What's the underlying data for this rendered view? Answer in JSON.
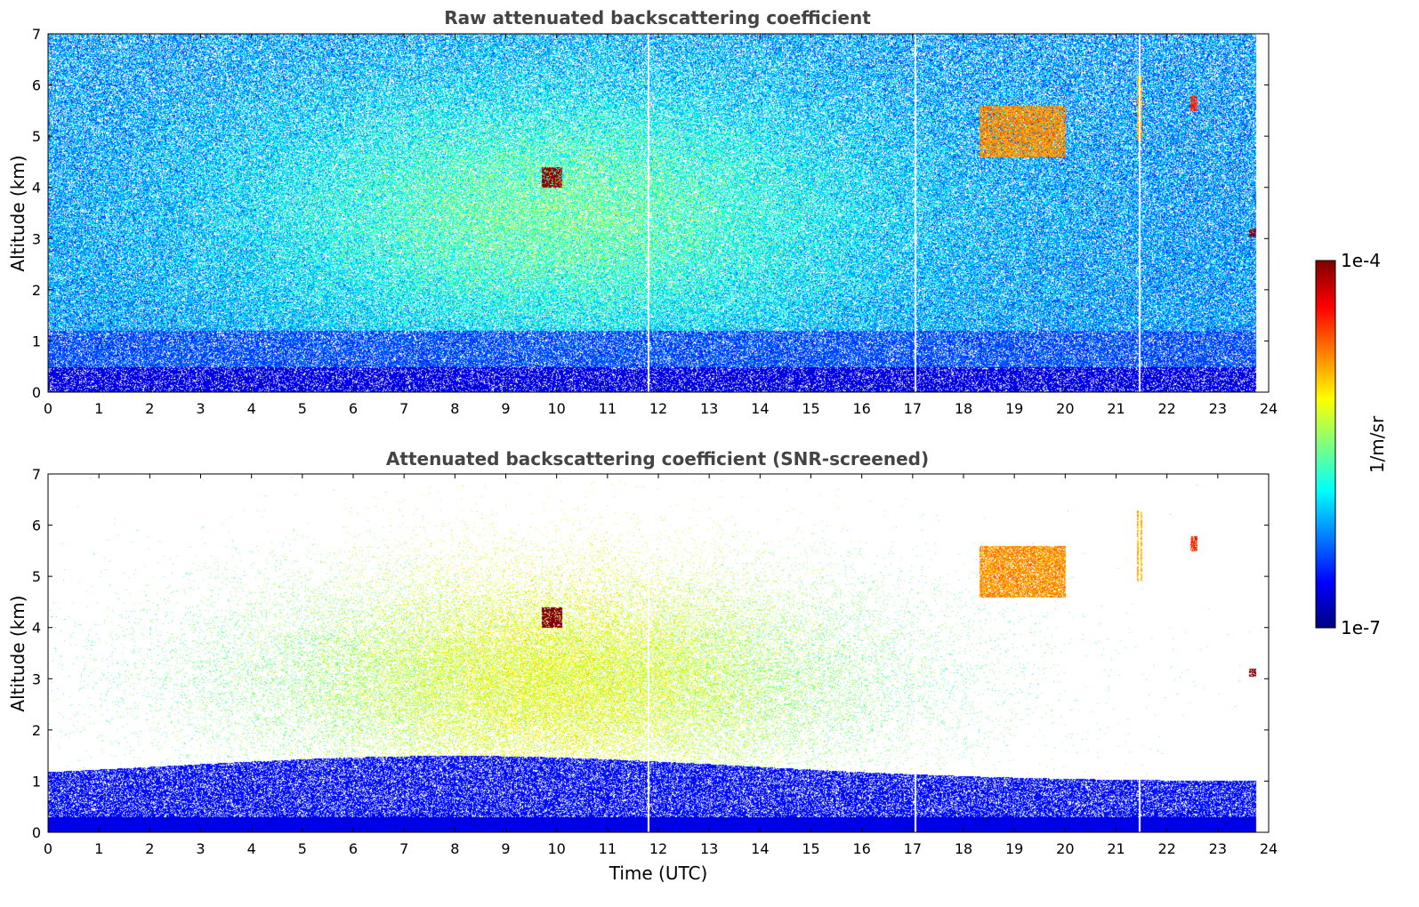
{
  "chart_data": [
    {
      "type": "heatmap",
      "title": "Raw attenuated backscattering coefficient",
      "xlabel": "",
      "ylabel": "Altitude (km)",
      "xlim": [
        0,
        24
      ],
      "ylim": [
        0,
        7
      ],
      "xticks": [
        "0",
        "1",
        "2",
        "3",
        "4",
        "5",
        "6",
        "7",
        "8",
        "9",
        "10",
        "11",
        "12",
        "13",
        "14",
        "15",
        "16",
        "17",
        "18",
        "19",
        "20",
        "21",
        "22",
        "23",
        "24"
      ],
      "yticks": [
        "0",
        "1",
        "2",
        "3",
        "4",
        "5",
        "6",
        "7"
      ],
      "screened": false,
      "features": [
        {
          "kind": "boundary-layer",
          "t_range": [
            0,
            23.75
          ],
          "alt_top": 0.5,
          "log_value": -6.7
        },
        {
          "kind": "aerosol-layer",
          "t_range": [
            6,
            11
          ],
          "alt_range": [
            3.3,
            5.2
          ],
          "log_value": -5.3
        },
        {
          "kind": "cloud",
          "t_range": [
            9.7,
            10.1
          ],
          "alt_range": [
            4.0,
            4.4
          ],
          "log_value": -4.0
        },
        {
          "kind": "cloud",
          "t_range": [
            18.3,
            20.0
          ],
          "alt_range": [
            4.6,
            5.6
          ],
          "log_value": -4.8
        },
        {
          "kind": "cloud",
          "t_range": [
            21.4,
            21.5
          ],
          "alt_range": [
            4.9,
            6.2
          ],
          "log_value": -4.9
        },
        {
          "kind": "cloud",
          "t_range": [
            22.45,
            22.6
          ],
          "alt_range": [
            5.5,
            5.8
          ],
          "log_value": -4.5
        },
        {
          "kind": "cloud",
          "t_range": [
            23.6,
            23.75
          ],
          "alt_range": [
            3.05,
            3.2
          ],
          "log_value": -4.0
        }
      ],
      "gaps_utc": [
        11.8,
        17.05,
        21.45
      ]
    },
    {
      "type": "heatmap",
      "title": "Attenuated backscattering coefficient (SNR-screened)",
      "xlabel": "Time (UTC)",
      "ylabel": "Altitude (km)",
      "xlim": [
        0,
        24
      ],
      "ylim": [
        0,
        7
      ],
      "xticks": [
        "0",
        "1",
        "2",
        "3",
        "4",
        "5",
        "6",
        "7",
        "8",
        "9",
        "10",
        "11",
        "12",
        "13",
        "14",
        "15",
        "16",
        "17",
        "18",
        "19",
        "20",
        "21",
        "22",
        "23",
        "24"
      ],
      "yticks": [
        "0",
        "1",
        "2",
        "3",
        "4",
        "5",
        "6",
        "7"
      ],
      "screened": true,
      "features": [
        {
          "kind": "boundary-layer",
          "t_range": [
            0,
            23.75
          ],
          "alt_top": 1.5,
          "log_value": -6.7
        },
        {
          "kind": "aerosol-layer",
          "t_range": [
            3,
            17
          ],
          "alt_range": [
            1.5,
            4.5
          ],
          "log_value": -5.5
        },
        {
          "kind": "cloud",
          "t_range": [
            9.7,
            10.1
          ],
          "alt_range": [
            4.0,
            4.4
          ],
          "log_value": -3.8
        },
        {
          "kind": "cloud",
          "t_range": [
            18.3,
            20.0
          ],
          "alt_range": [
            4.6,
            5.6
          ],
          "log_value": -4.8
        },
        {
          "kind": "cloud",
          "t_range": [
            21.4,
            21.5
          ],
          "alt_range": [
            4.9,
            6.3
          ],
          "log_value": -4.9
        },
        {
          "kind": "cloud",
          "t_range": [
            22.45,
            22.6
          ],
          "alt_range": [
            5.5,
            5.8
          ],
          "log_value": -4.5
        },
        {
          "kind": "cloud",
          "t_range": [
            23.6,
            23.75
          ],
          "alt_range": [
            3.05,
            3.2
          ],
          "log_value": -3.8
        }
      ],
      "gaps_utc": [
        11.8,
        17.05,
        21.45
      ]
    }
  ],
  "colorbar": {
    "label": "1/m/sr",
    "max_label": "1e-4",
    "min_label": "1e-7",
    "log_range": [
      -7,
      -4
    ],
    "colormap": "jet"
  }
}
